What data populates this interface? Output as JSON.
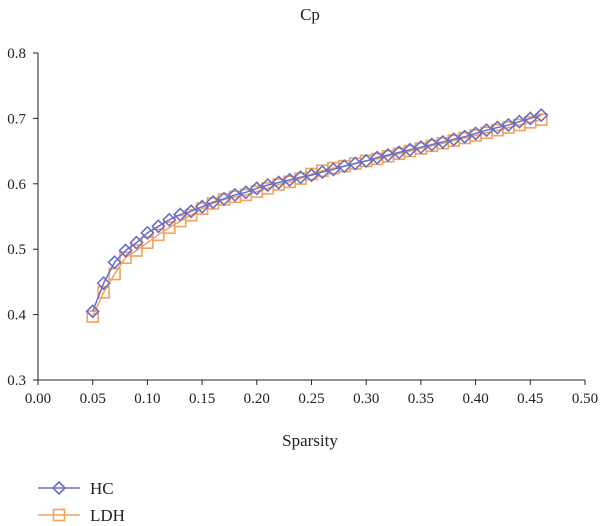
{
  "chart_data": {
    "type": "line",
    "title": "Cp",
    "xlabel": "Sparsity",
    "ylabel": "",
    "xlim": [
      0.0,
      0.5
    ],
    "ylim": [
      0.3,
      0.8
    ],
    "xticks": [
      "0.00",
      "0.05",
      "0.10",
      "0.15",
      "0.20",
      "0.25",
      "0.30",
      "0.35",
      "0.40",
      "0.45",
      "0.50"
    ],
    "yticks": [
      "0.3",
      "0.4",
      "0.5",
      "0.6",
      "0.7",
      "0.8"
    ],
    "grid": false,
    "legend_position": "bottom-left",
    "x": [
      0.05,
      0.06,
      0.07,
      0.08,
      0.09,
      0.1,
      0.11,
      0.12,
      0.13,
      0.14,
      0.15,
      0.16,
      0.17,
      0.18,
      0.19,
      0.2,
      0.21,
      0.22,
      0.23,
      0.24,
      0.25,
      0.26,
      0.27,
      0.28,
      0.29,
      0.3,
      0.31,
      0.32,
      0.33,
      0.34,
      0.35,
      0.36,
      0.37,
      0.38,
      0.39,
      0.4,
      0.41,
      0.42,
      0.43,
      0.44,
      0.45,
      0.46
    ],
    "series": [
      {
        "name": "HC",
        "color": "#6b6fc4",
        "marker": "diamond",
        "values": [
          0.405,
          0.448,
          0.48,
          0.498,
          0.51,
          0.525,
          0.535,
          0.545,
          0.553,
          0.558,
          0.565,
          0.572,
          0.577,
          0.583,
          0.587,
          0.593,
          0.598,
          0.602,
          0.606,
          0.61,
          0.613,
          0.618,
          0.622,
          0.627,
          0.631,
          0.635,
          0.64,
          0.644,
          0.648,
          0.652,
          0.656,
          0.66,
          0.664,
          0.668,
          0.672,
          0.677,
          0.682,
          0.686,
          0.69,
          0.695,
          0.7,
          0.705
        ]
      },
      {
        "name": "LDH",
        "color": "#f4a15a",
        "marker": "square",
        "values": [
          0.397,
          0.434,
          0.462,
          0.487,
          0.498,
          0.51,
          0.522,
          0.533,
          0.543,
          0.552,
          0.562,
          0.57,
          0.576,
          0.58,
          0.583,
          0.588,
          0.593,
          0.599,
          0.603,
          0.608,
          0.615,
          0.62,
          0.624,
          0.627,
          0.631,
          0.635,
          0.638,
          0.642,
          0.646,
          0.65,
          0.654,
          0.658,
          0.662,
          0.666,
          0.67,
          0.674,
          0.678,
          0.682,
          0.686,
          0.69,
          0.694,
          0.698
        ]
      }
    ]
  }
}
